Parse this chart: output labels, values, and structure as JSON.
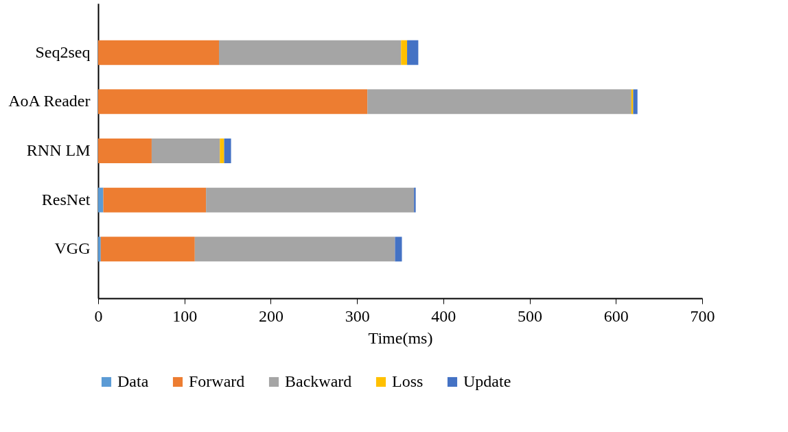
{
  "chart_data": {
    "type": "bar",
    "orientation": "horizontal",
    "stacked": true,
    "xlabel": "Time(ms)",
    "categories": [
      "Seq2seq",
      "AoA Reader",
      "RNN LM",
      "ResNet",
      "VGG"
    ],
    "series": [
      {
        "name": "Data",
        "color": "#5b9bd5",
        "values": [
          0,
          0,
          0,
          6,
          3
        ]
      },
      {
        "name": "Forward",
        "color": "#ed7d31",
        "values": [
          140,
          312,
          62,
          119,
          109
        ]
      },
      {
        "name": "Backward",
        "color": "#a5a5a5",
        "values": [
          211,
          306,
          79,
          241,
          232
        ]
      },
      {
        "name": "Loss",
        "color": "#ffc000",
        "values": [
          7,
          2,
          5,
          0,
          0
        ]
      },
      {
        "name": "Update",
        "color": "#4472c4",
        "values": [
          13,
          5,
          8,
          2,
          8
        ]
      }
    ],
    "xlim": [
      0,
      700
    ],
    "xticks": [
      0,
      100,
      200,
      300,
      400,
      500,
      600,
      700
    ],
    "grid": false,
    "legend": "bottom"
  }
}
